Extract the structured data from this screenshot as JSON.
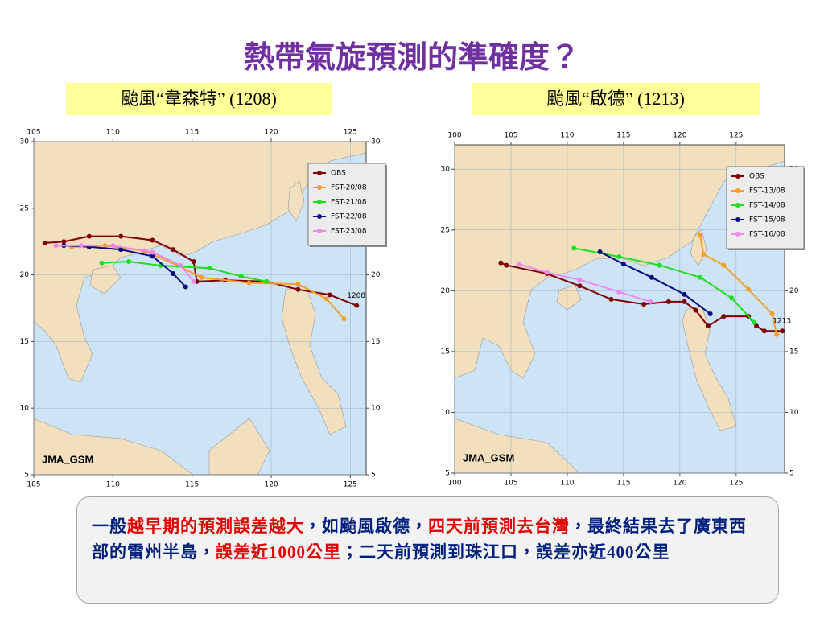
{
  "title": "熱帶氣旋預測的準確度？",
  "chart_data": [
    {
      "type": "line",
      "title": "颱風“韋森特” (1208)",
      "source_label": "JMA_GSM",
      "storm_label": "1208",
      "xlim": [
        105,
        126
      ],
      "ylim": [
        5,
        30
      ],
      "xticks": [
        105,
        110,
        115,
        120,
        125
      ],
      "yticks": [
        5,
        10,
        15,
        20,
        25,
        30
      ],
      "grid": true,
      "legend": "upper right",
      "series": [
        {
          "name": "OBS",
          "color": "#800000",
          "x": [
            125.4,
            123.7,
            121.7,
            119.7,
            117.1,
            115.3,
            115.1,
            113.8,
            112.5,
            110.5,
            108.5,
            106.9,
            105.7
          ],
          "values": [
            17.7,
            18.5,
            18.9,
            19.5,
            19.6,
            19.5,
            21.0,
            21.9,
            22.6,
            22.9,
            22.9,
            22.5,
            22.4
          ]
        },
        {
          "name": "FST-20/08",
          "color": "#f5a020",
          "x": [
            124.6,
            123.5,
            121.7,
            118.6,
            115.6,
            114.1,
            112.0,
            109.5,
            107.4
          ],
          "values": [
            16.7,
            18.2,
            19.3,
            19.4,
            19.8,
            20.7,
            21.8,
            22.2,
            22.1
          ]
        },
        {
          "name": "FST-21/08",
          "color": "#22dd22",
          "x": [
            109.3,
            111.0,
            113.0,
            116.1,
            118.1,
            119.7
          ],
          "values": [
            20.9,
            21.0,
            20.7,
            20.5,
            19.9,
            19.5
          ]
        },
        {
          "name": "FST-22/08",
          "color": "#0a0a80",
          "x": [
            114.6,
            113.8,
            112.5,
            110.5,
            108.5,
            106.9
          ],
          "values": [
            19.1,
            20.1,
            21.4,
            21.9,
            22.1,
            22.2
          ]
        },
        {
          "name": "FST-23/08",
          "color": "#ee88ee",
          "x": [
            115.1,
            114.3,
            112.5,
            110.0,
            108.0,
            106.4
          ],
          "values": [
            19.5,
            20.7,
            21.7,
            22.2,
            22.2,
            22.2
          ]
        }
      ]
    },
    {
      "type": "line",
      "title": "颱風“啟德” (1213)",
      "source_label": "JMA_GSM",
      "storm_label": "1213",
      "xlim": [
        100,
        129.3
      ],
      "ylim": [
        5,
        32
      ],
      "xticks": [
        100,
        105,
        110,
        115,
        120,
        125
      ],
      "yticks": [
        5,
        10,
        15,
        20,
        25,
        30
      ],
      "grid": true,
      "legend": "upper right",
      "series": [
        {
          "name": "OBS",
          "color": "#800000",
          "x": [
            129.1,
            127.5,
            126.8,
            126.1,
            123.9,
            122.5,
            121.4,
            120.4,
            119.0,
            116.8,
            113.9,
            111.1,
            108.2,
            104.6,
            104.1
          ],
          "values": [
            16.7,
            16.7,
            17.1,
            17.9,
            17.9,
            17.1,
            18.4,
            19.1,
            19.1,
            18.9,
            19.3,
            20.4,
            21.4,
            22.1,
            22.3
          ]
        },
        {
          "name": "FST-13/08",
          "color": "#f5a020",
          "x": [
            128.6,
            128.2,
            126.1,
            123.9,
            122.1,
            121.8
          ],
          "values": [
            16.4,
            18.1,
            20.1,
            22.1,
            23.0,
            24.6
          ]
        },
        {
          "name": "FST-14/08",
          "color": "#22dd22",
          "x": [
            126.6,
            124.6,
            121.8,
            118.2,
            114.6,
            110.6
          ],
          "values": [
            17.4,
            19.4,
            21.1,
            22.1,
            22.8,
            23.5
          ]
        },
        {
          "name": "FST-15/08",
          "color": "#0a0a80",
          "x": [
            122.7,
            120.4,
            117.5,
            115.0,
            112.9
          ],
          "values": [
            18.1,
            19.7,
            21.1,
            22.2,
            23.2
          ]
        },
        {
          "name": "FST-16/08",
          "color": "#ee88ee",
          "x": [
            117.4,
            114.6,
            111.1,
            108.2,
            105.7
          ],
          "values": [
            19.1,
            19.9,
            20.9,
            21.5,
            22.2
          ]
        }
      ]
    }
  ],
  "note": {
    "segments": [
      {
        "text": "一般",
        "color": "#002080"
      },
      {
        "text": "越早期的預測誤差越大",
        "color": "#e00000"
      },
      {
        "text": "，如颱風啟德，",
        "color": "#002080"
      },
      {
        "text": "四天前預測去台灣",
        "color": "#e00000"
      },
      {
        "text": "，最終結果去了廣東西部的雷州半島，",
        "color": "#002080"
      },
      {
        "text": "誤差近1000公里",
        "color": "#e00000"
      },
      {
        "text": "；二天前預測到珠江口，誤差亦近400公里",
        "color": "#002080"
      }
    ]
  }
}
